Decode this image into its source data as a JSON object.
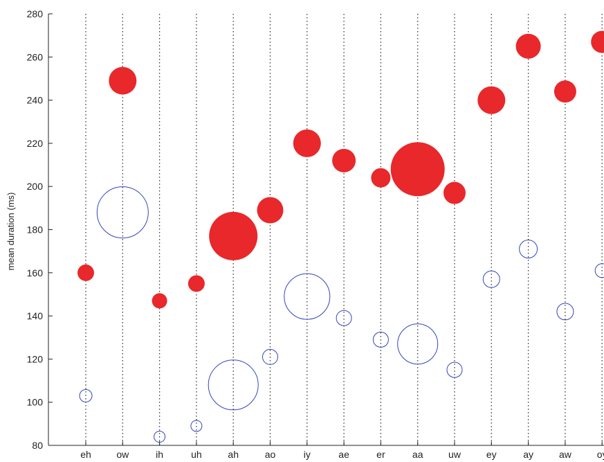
{
  "chart_data": {
    "type": "scatter",
    "ylabel": "mean duration (ms)",
    "xlabel": "",
    "title": "",
    "ylim": [
      80,
      280
    ],
    "yticks": [
      80,
      100,
      120,
      140,
      160,
      180,
      200,
      220,
      240,
      260,
      280
    ],
    "categories": [
      "eh",
      "ow",
      "ih",
      "uh",
      "ah",
      "ao",
      "iy",
      "ae",
      "er",
      "aa",
      "uw",
      "ey",
      "ay",
      "aw",
      "oy"
    ],
    "grid": "vertical dotted lines at each category",
    "series": [
      {
        "style": "filled",
        "color": "#e8282b",
        "values": [
          160,
          249,
          147,
          155,
          177,
          189,
          220,
          212,
          204,
          208,
          197,
          240,
          265,
          244,
          267
        ],
        "relative_size": [
          0.6,
          1.0,
          0.55,
          0.6,
          1.75,
          0.95,
          1.0,
          0.85,
          0.7,
          1.95,
          0.8,
          1.0,
          0.9,
          0.8,
          0.8
        ]
      },
      {
        "style": "open",
        "color": "#3344bb",
        "values": [
          103,
          188,
          84,
          89,
          108,
          121,
          149,
          139,
          129,
          127,
          115,
          157,
          171,
          142,
          161
        ],
        "relative_size": [
          0.45,
          1.85,
          0.4,
          0.4,
          1.8,
          0.55,
          1.65,
          0.55,
          0.55,
          1.45,
          0.55,
          0.6,
          0.65,
          0.6,
          0.5
        ]
      }
    ]
  }
}
